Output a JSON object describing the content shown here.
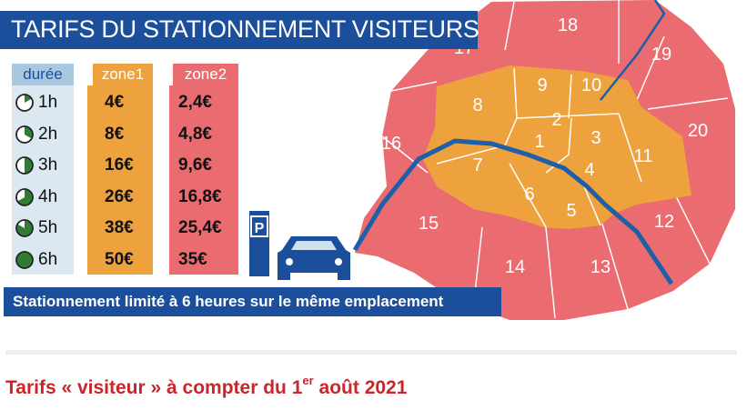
{
  "title": "TARIFS DU STATIONNEMENT VISITEURS",
  "table": {
    "headers": {
      "duree": "durée",
      "zone1": "zone1",
      "zone2": "zone2"
    },
    "rows": [
      {
        "duration": "1h",
        "zone1": "4€",
        "zone2": "2,4€",
        "fraction": 0.1667
      },
      {
        "duration": "2h",
        "zone1": "8€",
        "zone2": "4,8€",
        "fraction": 0.3333
      },
      {
        "duration": "3h",
        "zone1": "16€",
        "zone2": "9,6€",
        "fraction": 0.5
      },
      {
        "duration": "4h",
        "zone1": "26€",
        "zone2": "16,8€",
        "fraction": 0.6667
      },
      {
        "duration": "5h",
        "zone1": "38€",
        "zone2": "25,4€",
        "fraction": 0.8333
      },
      {
        "duration": "6h",
        "zone1": "50€",
        "zone2": "35€",
        "fraction": 1.0
      }
    ]
  },
  "parking_sign": "P",
  "footer_note": "Stationnement limité à 6 heures sur le même emplacement",
  "map": {
    "arrondissements": [
      "1",
      "2",
      "3",
      "4",
      "5",
      "6",
      "7",
      "8",
      "9",
      "10",
      "11",
      "12",
      "13",
      "14",
      "15",
      "16",
      "17",
      "18",
      "19",
      "20"
    ]
  },
  "caption": {
    "text": "Tarifs « visiteur » à compter du 1",
    "sup": "er",
    "text_end": " août 2021"
  },
  "colors": {
    "zone1": "#eda23d",
    "zone2": "#ea6b70",
    "header_blue": "#1b4f9c",
    "duree_header": "#a9c7df",
    "duree_bg": "#dbe8f2",
    "caption_red": "#c7262c",
    "seine": "#1d5fa8"
  }
}
